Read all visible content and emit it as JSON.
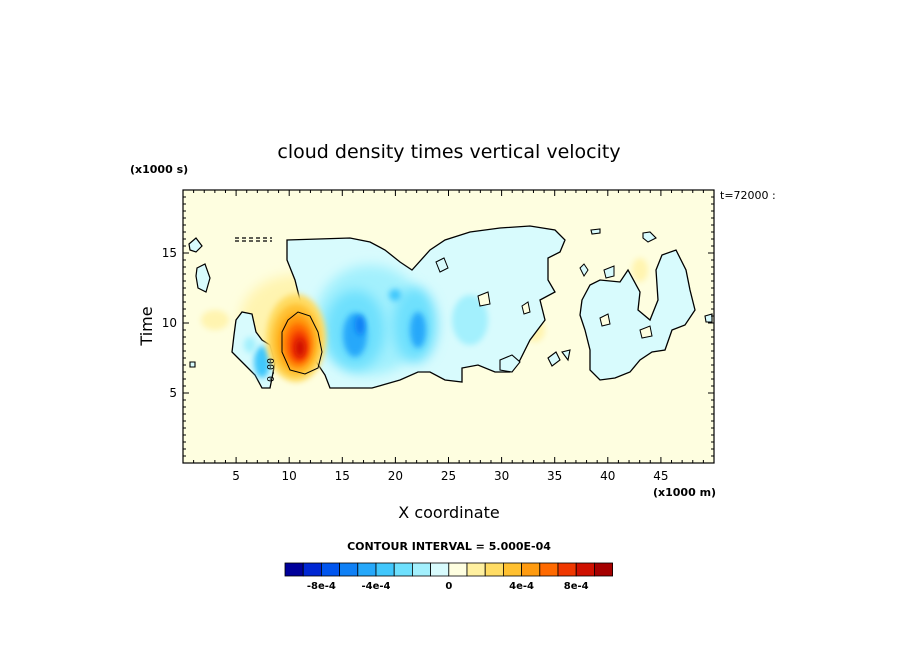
{
  "chart_data": {
    "type": "heatmap",
    "title": "cloud density times vertical velocity",
    "xlabel": "X coordinate",
    "ylabel": "Time",
    "x_scale_note": "(x1000 m)",
    "y_scale_note": "(x1000 s)",
    "time_label": "t=72000 :",
    "x_ticks": [
      5,
      10,
      15,
      20,
      25,
      30,
      35,
      40,
      45
    ],
    "y_ticks": [
      5,
      10,
      15
    ],
    "xlim": [
      0,
      50
    ],
    "ylim": [
      0,
      19.5
    ],
    "contour_interval_label": "CONTOUR INTERVAL = 5.000E-04",
    "contour_label": "0.00",
    "colorbar": {
      "colors": [
        "#00009a",
        "#0027d3",
        "#0055ee",
        "#0f80f5",
        "#26a8fa",
        "#41c7fc",
        "#6ee0fd",
        "#a3f0fd",
        "#d8fbfd",
        "#fefee0",
        "#fff0a0",
        "#ffdc64",
        "#ffc030",
        "#ff9b10",
        "#ff6a00",
        "#f03800",
        "#cf1000",
        "#a50000"
      ],
      "tick_labels": [
        "-8e-4",
        "-4e-4",
        "0",
        "4e-4",
        "8e-4"
      ]
    },
    "features": [
      {
        "kind": "positive_max",
        "x": 10.8,
        "y": 8.8,
        "value": 0.00095
      },
      {
        "kind": "negative_min",
        "x": 16.5,
        "y": 9.5,
        "value": -0.0005
      },
      {
        "kind": "negative_min",
        "x": 22.3,
        "y": 9.8,
        "value": -0.00045
      }
    ]
  }
}
